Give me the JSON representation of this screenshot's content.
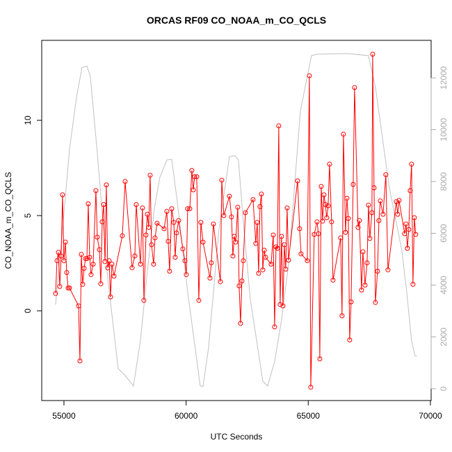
{
  "chart_data": {
    "type": "line",
    "title": "ORCAS RF09 CO_NOAA_m_CO_QCLS",
    "x_label": "UTC Seconds",
    "y_label": "CO_NOAA_m_CO_QCLS",
    "xlim": [
      54090,
      70030
    ],
    "xticks": [
      55000,
      60000,
      65000,
      70000
    ],
    "ylim": [
      -4.71,
      14.2
    ],
    "yticks": [
      0,
      5,
      10
    ],
    "y2lim": [
      -456,
      13450
    ],
    "y2ticks": [
      0,
      2000,
      4000,
      6000,
      8000,
      10000,
      12000
    ],
    "y2_color": "#aaaaaa",
    "series": [
      {
        "color": "#ff0000",
        "marker": "circle",
        "x": [
          54658,
          54715,
          54772,
          54829,
          54885,
          54942,
          54999,
          55056,
          55113,
          55170,
          55227,
          55597,
          55654,
          55711,
          55768,
          55825,
          55882,
          55939,
          55995,
          56052,
          56109,
          56195,
          56308,
          56365,
          56451,
          56508,
          56565,
          56622,
          56678,
          56735,
          56792,
          56849,
          56906,
          56963,
          57048,
          57390,
          57504,
          57788,
          57902,
          57959,
          58130,
          58215,
          58272,
          58358,
          58415,
          58471,
          58528,
          58585,
          58671,
          58728,
          58813,
          59098,
          59211,
          59268,
          59325,
          59411,
          59496,
          59553,
          59610,
          59695,
          59866,
          59951,
          60008,
          60065,
          60151,
          60236,
          60293,
          60350,
          60435,
          60521,
          60606,
          60691,
          60976,
          61033,
          61118,
          61403,
          61460,
          61545,
          61773,
          61858,
          61915,
          61972,
          62029,
          62114,
          62171,
          62228,
          62285,
          62342,
          62427,
          62740,
          62854,
          62911,
          62968,
          63025,
          63082,
          63139,
          63196,
          63253,
          63480,
          63566,
          63623,
          63680,
          63737,
          63793,
          63850,
          63907,
          63964,
          64021,
          64078,
          64135,
          64192,
          64562,
          64647,
          64704,
          64960,
          65046,
          65103,
          65245,
          65359,
          65416,
          65473,
          65530,
          65586,
          65643,
          65700,
          65757,
          65814,
          65871,
          65956,
          66013,
          66326,
          66383,
          66440,
          66526,
          66583,
          66639,
          66696,
          66753,
          66839,
          66896,
          67038,
          67095,
          67180,
          67237,
          67323,
          67408,
          67465,
          67522,
          67607,
          67636,
          67693,
          67749,
          67835,
          67892,
          67949,
          68062,
          68176,
          68262,
          68603,
          68660,
          68717,
          68945,
          69002,
          69058,
          69115,
          69172,
          69229,
          69286,
          69343,
          69400
        ],
        "values": [
          0.91,
          2.63,
          3.07,
          1.28,
          2.88,
          6.09,
          2.63,
          3.61,
          2.01,
          1.2,
          1.2,
          0.26,
          -2.63,
          2.96,
          1.39,
          2.23,
          2.74,
          2.74,
          5.62,
          2.81,
          1.9,
          2.45,
          6.31,
          3.87,
          3.21,
          1.42,
          4.67,
          5.58,
          2.59,
          6.61,
          2.26,
          2.63,
          0.73,
          2.45,
          1.82,
          3.94,
          6.79,
          2.26,
          2.88,
          5.58,
          2.45,
          5.4,
          0.55,
          3.98,
          5.07,
          4.38,
          7.12,
          3.47,
          2.45,
          3.83,
          4.6,
          4.31,
          5.22,
          3.65,
          2.08,
          5.36,
          4.64,
          2.81,
          4.09,
          4.74,
          3.25,
          2.63,
          1.9,
          5.36,
          5.36,
          7.37,
          6.35,
          7.04,
          7.04,
          0.55,
          4.64,
          3.61,
          1.72,
          2.52,
          4.56,
          1.53,
          6.86,
          5.0,
          6.02,
          4.93,
          2.88,
          3.91,
          3.61,
          5.44,
          1.31,
          -0.66,
          1.57,
          2.63,
          5.15,
          5.84,
          3.54,
          4.64,
          1.97,
          5.47,
          6.13,
          2.15,
          3.18,
          2.81,
          2.45,
          3.98,
          -0.84,
          3.36,
          3.28,
          9.71,
          0.33,
          3.91,
          0.26,
          3.47,
          2.19,
          5.4,
          2.66,
          6.82,
          4.31,
          2.99,
          2.63,
          12.34,
          -4.01,
          4.01,
          4.67,
          4.05,
          -2.52,
          6.53,
          4.71,
          6.09,
          5.58,
          4.89,
          5.51,
          7.7,
          4.67,
          1.61,
          3.83,
          -0.26,
          9.27,
          4.12,
          5.91,
          4.85,
          -1.53,
          0.47,
          6.64,
          11.72,
          4.38,
          4.74,
          1.09,
          3.1,
          1.35,
          2.52,
          5.55,
          3.8,
          5.15,
          13.47,
          6.46,
          0.44,
          2.08,
          4.74,
          5.77,
          5.07,
          7.15,
          2.15,
          5.73,
          5.07,
          5.8,
          4.05,
          4.56,
          3.28,
          4.27,
          6.31,
          7.7,
          1.39,
          4.89,
          4.01
        ]
      },
      {
        "color": "#c0c0c0",
        "axis": "y2",
        "x": [
          54658,
          54942,
          55227,
          55512,
          55739,
          55939,
          56081,
          56365,
          56792,
          57219,
          57504,
          57845,
          58130,
          58415,
          58699,
          58927,
          59211,
          59411,
          59638,
          60065,
          60407,
          60577,
          60691,
          60919,
          61346,
          61773,
          62000,
          62143,
          62342,
          62627,
          63139,
          63338,
          63623,
          63907,
          64192,
          64676,
          64903,
          65131,
          65359,
          66611,
          67465,
          67749,
          68318,
          68831,
          69030,
          69229,
          69371,
          69457
        ],
        "values": [
          3248,
          6148,
          9235,
          11248,
          12403,
          12456,
          12054,
          9101,
          4268,
          779,
          510,
          107,
          1852,
          4537,
          6953,
          8161,
          8832,
          8859,
          7221,
          3732,
          1315,
          107,
          81,
          1584,
          6148,
          8966,
          8993,
          8832,
          6416,
          3463,
          295,
          107,
          1047,
          2658,
          4805,
          10711,
          11785,
          12859,
          12913,
          12940,
          12859,
          11651,
          7758,
          5342,
          3732,
          1852,
          1262,
          1262
        ]
      }
    ]
  }
}
